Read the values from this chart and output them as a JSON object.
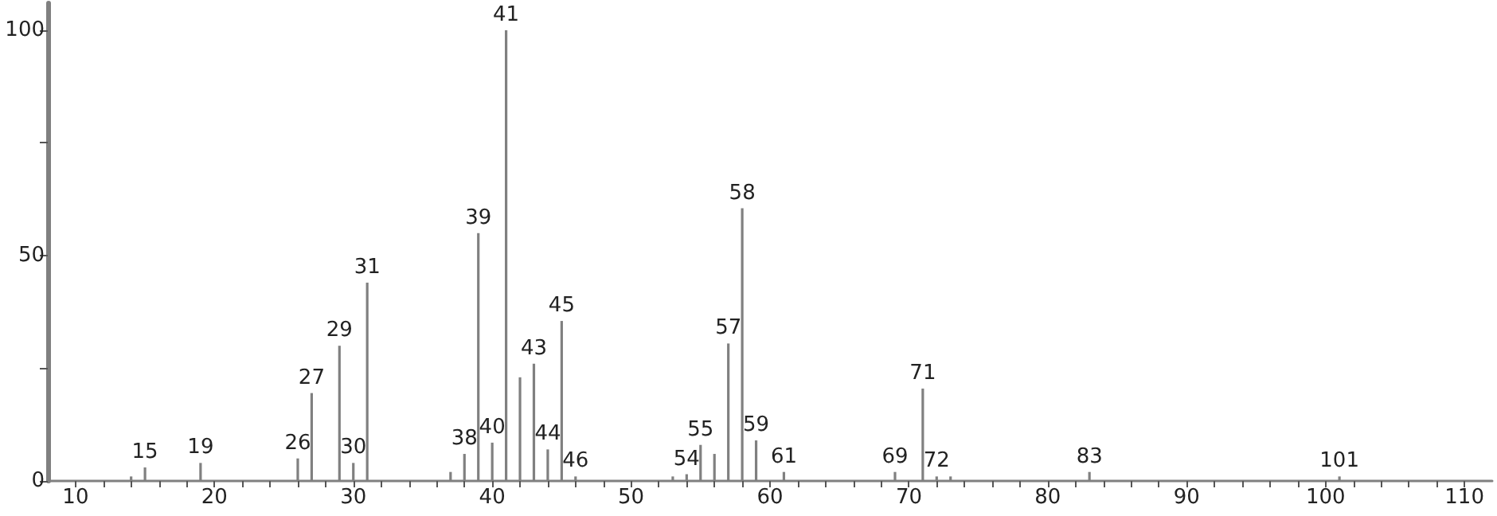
{
  "chart_data": {
    "type": "bar",
    "x": [
      14,
      15,
      19,
      26,
      27,
      29,
      30,
      31,
      37,
      38,
      39,
      40,
      41,
      42,
      43,
      44,
      45,
      46,
      53,
      54,
      55,
      56,
      57,
      58,
      59,
      61,
      69,
      71,
      72,
      73,
      83,
      101
    ],
    "values": [
      1,
      3,
      4,
      5,
      19.5,
      30,
      4,
      44,
      2,
      6,
      55,
      8.5,
      100,
      23,
      26,
      7,
      35.5,
      1,
      1,
      1.5,
      8,
      6,
      30.5,
      60.5,
      9,
      2,
      2,
      20.5,
      1,
      1,
      2,
      1
    ],
    "annotations": [
      {
        "text": "15",
        "x": 15,
        "y": 3
      },
      {
        "text": "19",
        "x": 19,
        "y": 4
      },
      {
        "text": "26",
        "x": 26,
        "y": 5
      },
      {
        "text": "27",
        "x": 27,
        "y": 19.5
      },
      {
        "text": "29",
        "x": 29,
        "y": 30
      },
      {
        "text": "30",
        "x": 30,
        "y": 4
      },
      {
        "text": "31",
        "x": 31,
        "y": 44
      },
      {
        "text": "38",
        "x": 38,
        "y": 6
      },
      {
        "text": "39",
        "x": 39,
        "y": 55
      },
      {
        "text": "40",
        "x": 40,
        "y": 8.5
      },
      {
        "text": "41",
        "x": 41,
        "y": 100
      },
      {
        "text": "43",
        "x": 43,
        "y": 26
      },
      {
        "text": "44",
        "x": 44,
        "y": 7
      },
      {
        "text": "45",
        "x": 45,
        "y": 35.5
      },
      {
        "text": "46",
        "x": 46,
        "y": 1
      },
      {
        "text": "54",
        "x": 54,
        "y": 1.5
      },
      {
        "text": "55",
        "x": 55,
        "y": 8
      },
      {
        "text": "57",
        "x": 57,
        "y": 30.5
      },
      {
        "text": "58",
        "x": 58,
        "y": 60.5
      },
      {
        "text": "59",
        "x": 59,
        "y": 9
      },
      {
        "text": "61",
        "x": 61,
        "y": 2
      },
      {
        "text": "69",
        "x": 69,
        "y": 2
      },
      {
        "text": "71",
        "x": 71,
        "y": 20.5
      },
      {
        "text": "72",
        "x": 72,
        "y": 1
      },
      {
        "text": "83",
        "x": 83,
        "y": 2
      },
      {
        "text": "101",
        "x": 101,
        "y": 1
      }
    ],
    "color": "#808080",
    "xlim": [
      8,
      112
    ],
    "xticks": [
      10,
      {
        "value": 12,
        "label": null
      },
      {
        "value": 14,
        "label": null
      },
      {
        "value": 16,
        "label": null
      },
      {
        "value": 18,
        "label": null
      },
      20,
      {
        "value": 22,
        "label": null
      },
      {
        "value": 24,
        "label": null
      },
      {
        "value": 26,
        "label": null
      },
      {
        "value": 28,
        "label": null
      },
      30,
      {
        "value": 32,
        "label": null
      },
      {
        "value": 34,
        "label": null
      },
      {
        "value": 36,
        "label": null
      },
      {
        "value": 38,
        "label": null
      },
      40,
      {
        "value": 42,
        "label": null
      },
      {
        "value": 44,
        "label": null
      },
      {
        "value": 46,
        "label": null
      },
      {
        "value": 48,
        "label": null
      },
      50,
      {
        "value": 52,
        "label": null
      },
      {
        "value": 54,
        "label": null
      },
      {
        "value": 56,
        "label": null
      },
      {
        "value": 58,
        "label": null
      },
      60,
      {
        "value": 62,
        "label": null
      },
      {
        "value": 64,
        "label": null
      },
      {
        "value": 66,
        "label": null
      },
      {
        "value": 68,
        "label": null
      },
      70,
      {
        "value": 72,
        "label": null
      },
      {
        "value": 74,
        "label": null
      },
      {
        "value": 76,
        "label": null
      },
      {
        "value": 78,
        "label": null
      },
      80,
      {
        "value": 82,
        "label": null
      },
      {
        "value": 84,
        "label": null
      },
      {
        "value": 86,
        "label": null
      },
      {
        "value": 88,
        "label": null
      },
      90,
      {
        "value": 92,
        "label": null
      },
      {
        "value": 94,
        "label": null
      },
      {
        "value": 96,
        "label": null
      },
      {
        "value": 98,
        "label": null
      },
      100,
      {
        "value": 102,
        "label": null
      },
      {
        "value": 104,
        "label": null
      },
      {
        "value": 106,
        "label": null
      },
      {
        "value": 108,
        "label": null
      },
      110
    ],
    "ylim": [
      0,
      106
    ],
    "yticks": [
      0,
      {
        "value": 25,
        "label": null
      },
      50,
      {
        "value": 75,
        "label": null
      },
      100
    ],
    "grid": false
  }
}
